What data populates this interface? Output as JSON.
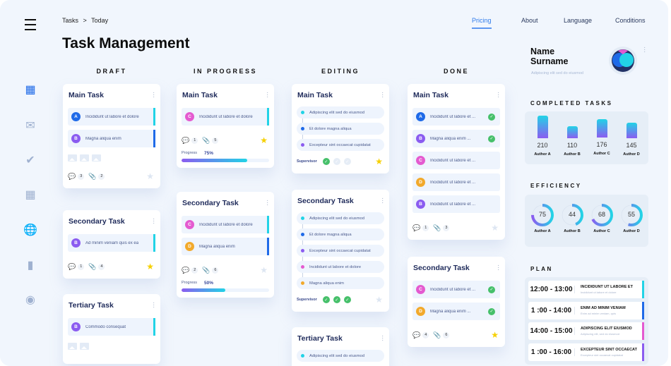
{
  "breadcrumb": {
    "root": "Tasks",
    "sep": ">",
    "current": "Today"
  },
  "title": "Task Management",
  "nav": [
    {
      "label": "Pricing",
      "active": true
    },
    {
      "label": "About"
    },
    {
      "label": "Language"
    },
    {
      "label": "Conditions"
    }
  ],
  "sidebar": [
    "grid-icon",
    "mail-icon",
    "check-circle-icon",
    "calendar-icon",
    "globe-icon",
    "bar-chart-icon",
    "record-icon"
  ],
  "colors": {
    "A": "#1f6ae8",
    "B": "#8b5cf0",
    "C": "#e45ad0",
    "D": "#f2a92b",
    "cyan": "#22d3e6",
    "blue": "#1f6ae8",
    "purple": "#8b5cf0",
    "pink": "#e45ad0",
    "orange": "#f2a92b",
    "star": "#f6d000",
    "star_off": "#dde6f2",
    "check": "#46c06a"
  },
  "columns": [
    {
      "title": "DRAFT",
      "cards": [
        {
          "title": "Main Task",
          "items": [
            {
              "av": "A",
              "text": "Incididunt ut labore et dolore",
              "bar": "cyan"
            },
            {
              "av": "B",
              "text": "Magna aliqua enim",
              "bar": "blue"
            }
          ],
          "images": 3,
          "comments": "3",
          "attachments": "2",
          "starred": false
        },
        {
          "title": "Secondary Task",
          "items": [
            {
              "av": "B",
              "text": "Ad minim veniam  quis ex ea",
              "bar": "cyan"
            }
          ],
          "comments": "1",
          "attachments": "4",
          "starred": true
        },
        {
          "title": "Tertiary Task",
          "items": [
            {
              "av": "B",
              "text": "Commodo consequat",
              "bar": "cyan"
            }
          ],
          "images": 2
        }
      ]
    },
    {
      "title": "IN PROGRESS",
      "cards": [
        {
          "title": "Main Task",
          "items": [
            {
              "av": "C",
              "text": "Incididunt ut labore et dolore",
              "bar": "cyan"
            }
          ],
          "comments": "1",
          "attachments": "5",
          "starred": true,
          "progress_label": "Progress",
          "progress": "75%",
          "progress_value": 75
        },
        {
          "title": "Secondary Task",
          "items": [
            {
              "av": "C",
              "text": "Incididunt ut labore et dolore",
              "bar": "cyan"
            },
            {
              "av": "D",
              "text": "Magna aliqua enim",
              "bar": "blue"
            }
          ],
          "comments": "2",
          "attachments": "6",
          "starred": false,
          "progress_label": "Progress",
          "progress": "50%",
          "progress_value": 50
        }
      ]
    },
    {
      "title": "EDITING",
      "cards": [
        {
          "title": "Main Task",
          "timeline": [
            {
              "dot": "cyan",
              "text": "Adipiscing elit sed do eiusmod"
            },
            {
              "dot": "blue",
              "text": "Et dolore magna aliqua"
            },
            {
              "dot": "purple",
              "text": "Excepteur sint occaecat cupidatat"
            }
          ],
          "supervisor": "Supervisor",
          "checks": [
            true,
            false,
            false
          ],
          "starred": true
        },
        {
          "title": "Secondary Task",
          "timeline": [
            {
              "dot": "cyan",
              "text": "Adipiscing elit sed do eiusmod"
            },
            {
              "dot": "blue",
              "text": "Et dolore magna aliqua"
            },
            {
              "dot": "purple",
              "text": "Excepteur sint occaecat cupidatat"
            },
            {
              "dot": "pink",
              "text": "Incididunt ut labore et dolore"
            },
            {
              "dot": "orange",
              "text": "Magna aliqua enim"
            }
          ],
          "supervisor": "Supervisor",
          "checks": [
            true,
            true,
            true
          ],
          "starred": false
        },
        {
          "title": "Tertiary Task",
          "timeline": [
            {
              "dot": "cyan",
              "text": "Adipiscing elit sed do eiusmod"
            }
          ]
        }
      ]
    },
    {
      "title": "DONE",
      "cards": [
        {
          "title": "Main Task",
          "items": [
            {
              "av": "A",
              "text": "Incididunt ut labore et ...",
              "check": true
            },
            {
              "av": "B",
              "text": "Magna aliqua enim ...",
              "check": true
            },
            {
              "av": "C",
              "text": "Incididunt ut labore et ..."
            },
            {
              "av": "D",
              "text": "Incididunt ut labore et ..."
            },
            {
              "av": "B",
              "text": "Incididunt ut labore et ..."
            }
          ],
          "comments": "1",
          "attachments": "3",
          "starred": false
        },
        {
          "title": "Secondary Task",
          "items": [
            {
              "av": "C",
              "text": "Incididunt ut labore et ...",
              "check": true
            },
            {
              "av": "D",
              "text": "Magna aliqua enim ...",
              "check": true
            }
          ],
          "comments": "4",
          "attachments": "6",
          "starred": true
        }
      ]
    }
  ],
  "profile": {
    "name1": "Name",
    "name2": "Surname",
    "subtitle": "Adipiscing elit sed do eiusmod"
  },
  "completed": {
    "title": "COMPLETED TASKS",
    "authors": [
      "Author A",
      "Author B",
      "Author C",
      "Author D"
    ],
    "values": [
      210,
      110,
      176,
      145
    ]
  },
  "efficiency": {
    "title": "EFFICIENCY",
    "authors": [
      "Author A",
      "Author B",
      "Author C",
      "Author D"
    ],
    "values": [
      75,
      44,
      68,
      55
    ]
  },
  "plan": {
    "title": "PLAN",
    "rows": [
      {
        "time": "12:00 - 13:00",
        "title": "INCIDIDUNT UT LABORE ET",
        "sub": "Incididunt ut labore et dolore",
        "color": "cyan"
      },
      {
        "time": "1 :00 - 14:00",
        "title": "ENIM AD MINIM VENIAM",
        "sub": "Enim ad minim veniam, quis",
        "color": "blue"
      },
      {
        "time": "14:00 - 15:00",
        "title": "ADIPISCING ELIT EIUSMOD",
        "sub": "Adipiscing elit, sed do eiusmod",
        "color": "pink"
      },
      {
        "time": "1 :00 - 16:00",
        "title": "EXCEPTEUR SINT OCCAECAT",
        "sub": "Excepteur sint occaecat cupidatat",
        "color": "purple"
      }
    ]
  }
}
